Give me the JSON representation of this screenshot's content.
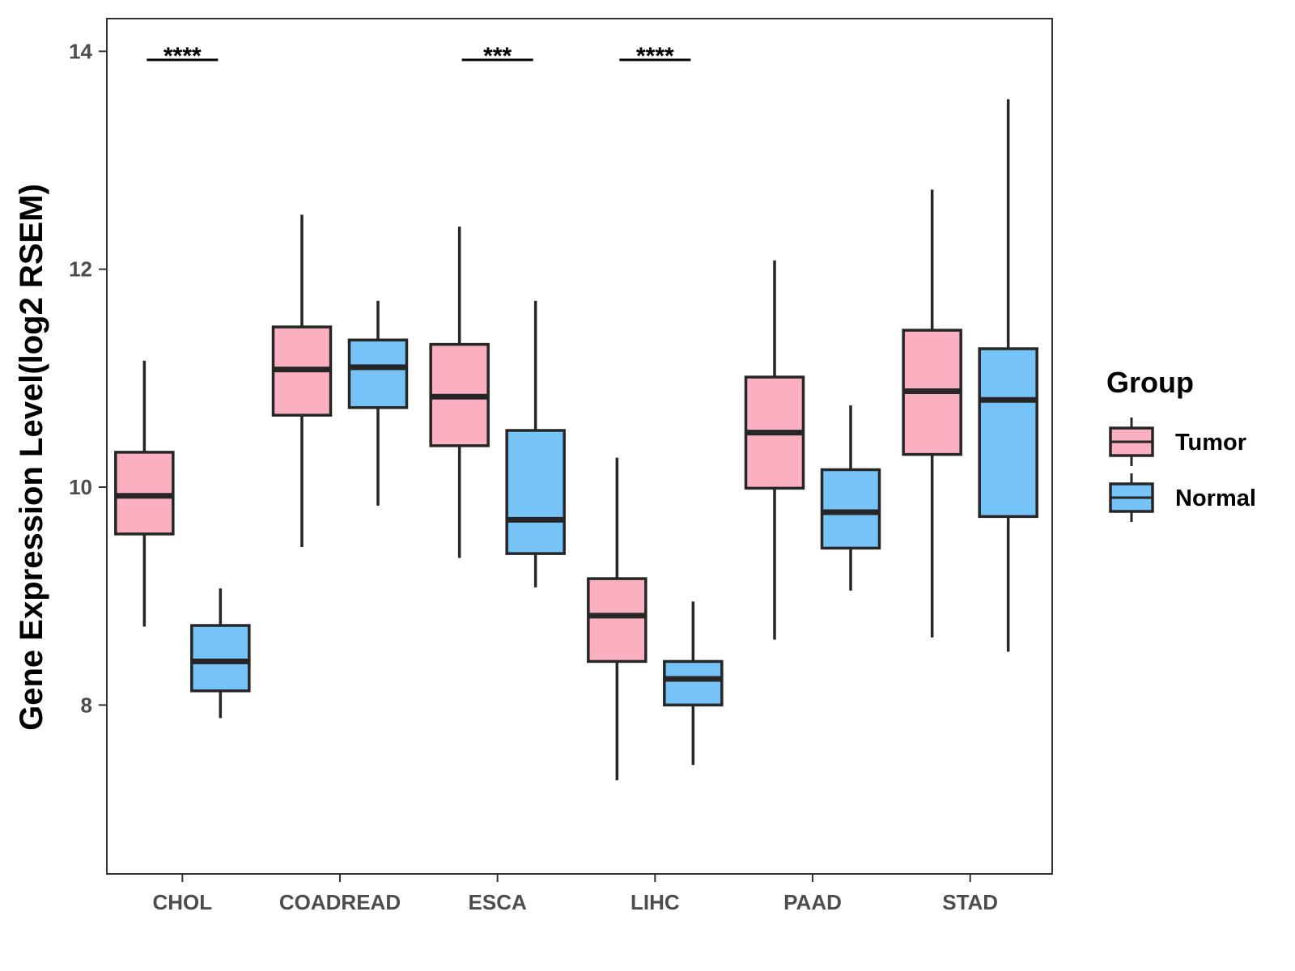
{
  "chart_data": {
    "type": "boxplot",
    "title": "",
    "xlabel": "",
    "ylabel": "Gene Expression Level(log2 RSEM)",
    "ylim": [
      6.45,
      14.3
    ],
    "yticks": [
      8,
      10,
      12,
      14
    ],
    "grid": false,
    "categories": [
      "CHOL",
      "COADREAD",
      "ESCA",
      "LIHC",
      "PAAD",
      "STAD"
    ],
    "legend": {
      "title": "Group",
      "position": "right",
      "entries": [
        {
          "name": "Tumor",
          "color": "#FBB0C2"
        },
        {
          "name": "Normal",
          "color": "#76C3F8"
        }
      ]
    },
    "series": [
      {
        "name": "Tumor",
        "color": "#FBB0C2",
        "boxes": [
          {
            "min": 8.72,
            "q1": 9.57,
            "median": 9.92,
            "q3": 10.32,
            "max": 11.16
          },
          {
            "min": 9.45,
            "q1": 10.66,
            "median": 11.08,
            "q3": 11.47,
            "max": 12.5
          },
          {
            "min": 9.35,
            "q1": 10.38,
            "median": 10.83,
            "q3": 11.31,
            "max": 12.39
          },
          {
            "min": 7.31,
            "q1": 8.4,
            "median": 8.82,
            "q3": 9.16,
            "max": 10.27
          },
          {
            "min": 8.6,
            "q1": 9.99,
            "median": 10.5,
            "q3": 11.01,
            "max": 12.08
          },
          {
            "min": 8.62,
            "q1": 10.3,
            "median": 10.88,
            "q3": 11.44,
            "max": 12.73
          }
        ]
      },
      {
        "name": "Normal",
        "color": "#76C3F8",
        "boxes": [
          {
            "min": 7.88,
            "q1": 8.13,
            "median": 8.4,
            "q3": 8.73,
            "max": 9.07
          },
          {
            "min": 9.83,
            "q1": 10.73,
            "median": 11.1,
            "q3": 11.35,
            "max": 11.71
          },
          {
            "min": 9.08,
            "q1": 9.39,
            "median": 9.7,
            "q3": 10.52,
            "max": 11.71
          },
          {
            "min": 7.45,
            "q1": 8.0,
            "median": 8.24,
            "q3": 8.4,
            "max": 8.95
          },
          {
            "min": 9.05,
            "q1": 9.44,
            "median": 9.77,
            "q3": 10.16,
            "max": 10.75
          },
          {
            "min": 8.49,
            "q1": 9.73,
            "median": 10.8,
            "q3": 11.27,
            "max": 13.56
          }
        ]
      }
    ],
    "significance": [
      {
        "category": "CHOL",
        "label": "****"
      },
      {
        "category": "ESCA",
        "label": "***"
      },
      {
        "category": "LIHC",
        "label": "****"
      }
    ]
  }
}
